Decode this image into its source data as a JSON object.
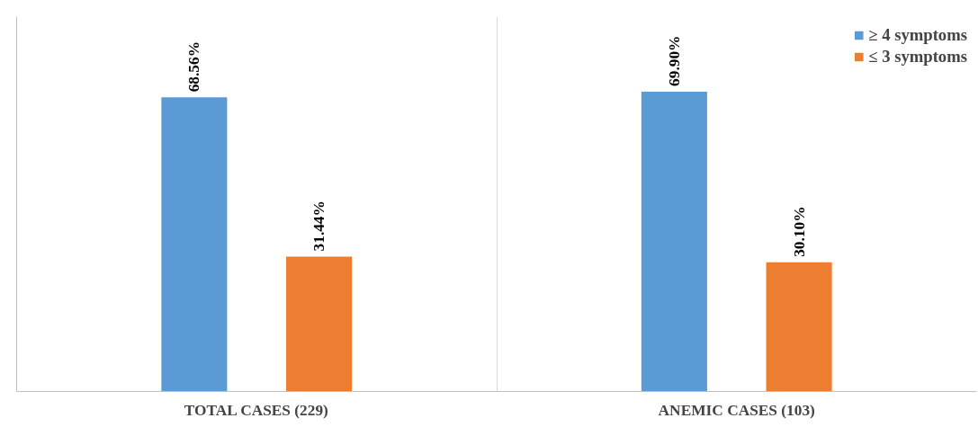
{
  "chart_data": {
    "type": "bar",
    "categories": [
      "TOTAL CASES (229)",
      "ANEMIC CASES (103)"
    ],
    "series": [
      {
        "name": "≥ 4 symptoms",
        "color": "#5b9bd5",
        "values": [
          68.56,
          69.9
        ],
        "value_labels": [
          "68.56%",
          "69.90%"
        ]
      },
      {
        "name": "≤ 3 symptoms",
        "color": "#ed7d31",
        "values": [
          31.44,
          30.1
        ],
        "value_labels": [
          "31.44%",
          "30.10%"
        ]
      }
    ],
    "legend": "top right",
    "grid": "x",
    "tick_labels": "x"
  }
}
